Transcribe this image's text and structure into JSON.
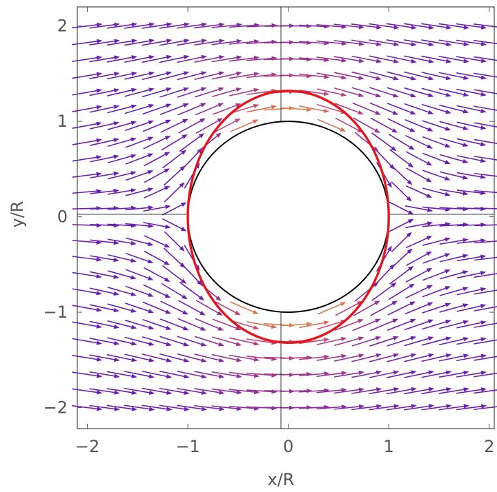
{
  "chart_data": {
    "type": "vector-field",
    "xlabel": "x/R",
    "ylabel": "y/R",
    "xlim": [
      -2.1,
      2.05
    ],
    "ylim": [
      -2.22,
      2.2
    ],
    "x_ticks": [
      {
        "value": -2,
        "label": "−2"
      },
      {
        "value": -1,
        "label": "−1"
      },
      {
        "value": 0,
        "label": "0"
      },
      {
        "value": 1,
        "label": "1"
      },
      {
        "value": 2,
        "label": "2"
      }
    ],
    "y_ticks": [
      {
        "value": -2,
        "label": "−2"
      },
      {
        "value": -1,
        "label": "−1"
      },
      {
        "value": 0,
        "label": "0"
      },
      {
        "value": 1,
        "label": "1"
      },
      {
        "value": 2,
        "label": "2"
      }
    ],
    "field": {
      "description": "potential flow past a cylinder",
      "cylinder_radius": 1,
      "x_range": [
        -2,
        2
      ],
      "y_range": [
        -2,
        2
      ],
      "columns": 24,
      "rows": 24
    },
    "curves": [
      {
        "kind": "circle",
        "radius": 1,
        "color": "#000000"
      },
      {
        "kind": "ellipse",
        "semi_x": 1,
        "semi_y": 1.32,
        "color": "#e8141c"
      }
    ],
    "colors": {
      "arrow_slow": "#6a1fb0",
      "arrow_mid": "#c2447d",
      "arrow_fast": "#f4b11a",
      "axis": "#555555"
    }
  }
}
